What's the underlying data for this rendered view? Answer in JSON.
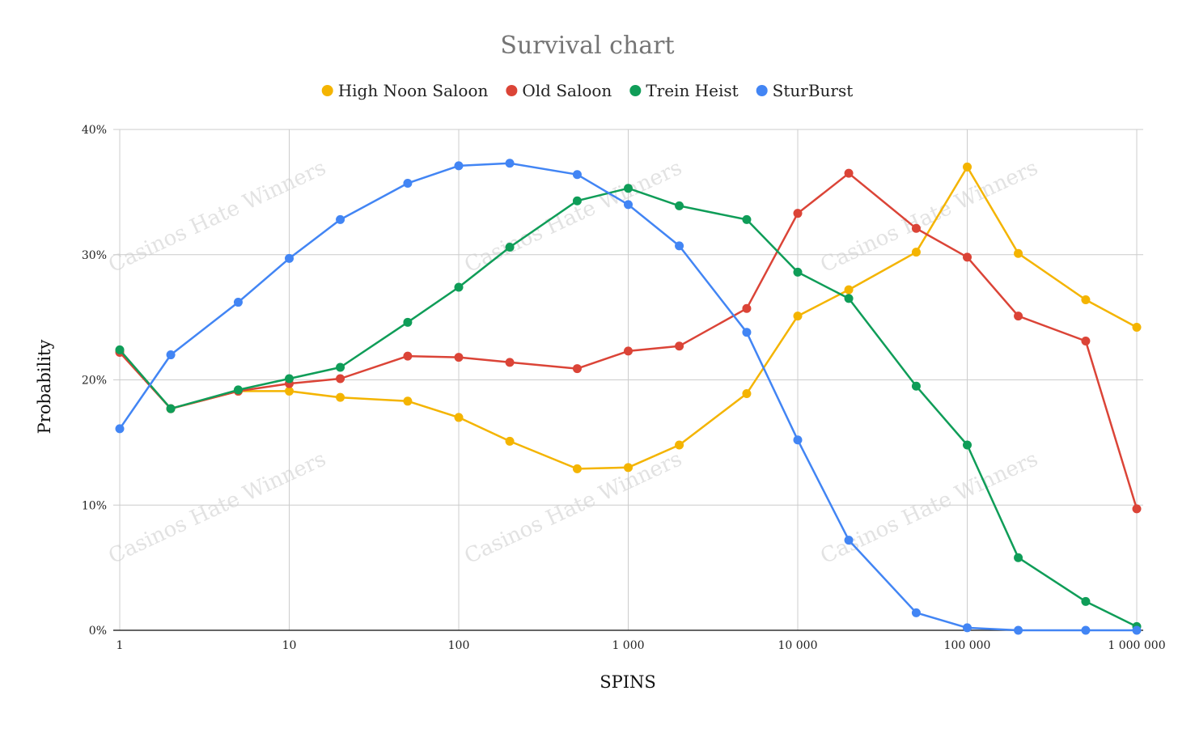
{
  "chart_data": {
    "type": "line",
    "title": "Survival chart",
    "xlabel": "SPINS",
    "ylabel": "Probability",
    "x_scale": "log",
    "x": [
      1,
      2,
      5,
      10,
      20,
      50,
      100,
      200,
      500,
      1000,
      2000,
      5000,
      10000,
      20000,
      50000,
      100000,
      200000,
      500000,
      1000000
    ],
    "xlim": [
      1,
      1000000
    ],
    "ylim": [
      0,
      40
    ],
    "x_ticks": [
      {
        "value": 1,
        "label": "1"
      },
      {
        "value": 10,
        "label": "10"
      },
      {
        "value": 100,
        "label": "100"
      },
      {
        "value": 1000,
        "label": "1 000"
      },
      {
        "value": 10000,
        "label": "10 000"
      },
      {
        "value": 100000,
        "label": "100 000"
      },
      {
        "value": 1000000,
        "label": "1 000 000"
      }
    ],
    "y_ticks": [
      {
        "value": 0,
        "label": "0%"
      },
      {
        "value": 10,
        "label": "10%"
      },
      {
        "value": 20,
        "label": "20%"
      },
      {
        "value": 30,
        "label": "30%"
      },
      {
        "value": 40,
        "label": "40%"
      }
    ],
    "grid": true,
    "legend_position": "top-center",
    "watermark": "Casinos Hate Winners",
    "series": [
      {
        "name": "High Noon Saloon",
        "color": "#F4B400",
        "values": [
          22.3,
          17.7,
          19.1,
          19.1,
          18.6,
          18.3,
          17.0,
          15.1,
          12.9,
          13.0,
          14.8,
          18.9,
          25.1,
          27.2,
          30.2,
          37.0,
          30.1,
          26.4,
          24.2
        ]
      },
      {
        "name": "Old Saloon",
        "color": "#DB4437",
        "values": [
          22.2,
          17.7,
          19.1,
          19.7,
          20.1,
          21.9,
          21.8,
          21.4,
          20.9,
          22.3,
          22.7,
          25.7,
          33.3,
          36.5,
          32.1,
          29.8,
          25.1,
          23.1,
          9.7
        ]
      },
      {
        "name": "Trein Heist",
        "color": "#0F9D58",
        "values": [
          22.4,
          17.7,
          19.2,
          20.1,
          21.0,
          24.6,
          27.4,
          30.6,
          34.3,
          35.3,
          33.9,
          32.8,
          28.6,
          26.5,
          19.5,
          14.8,
          5.8,
          2.3,
          0.3
        ]
      },
      {
        "name": "SturBurst",
        "color": "#4285F4",
        "values": [
          16.1,
          22.0,
          26.2,
          29.7,
          32.8,
          35.7,
          37.1,
          37.3,
          36.4,
          34.0,
          30.7,
          23.8,
          15.2,
          7.2,
          1.4,
          0.2,
          0.0,
          0.0,
          0.0
        ]
      }
    ]
  }
}
